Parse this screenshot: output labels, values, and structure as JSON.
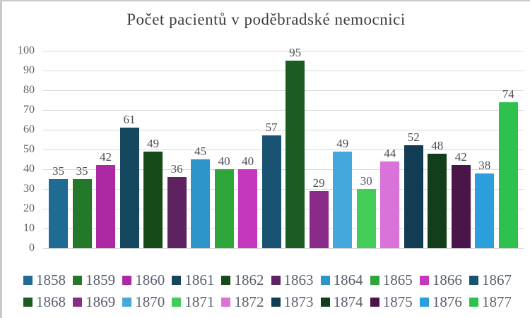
{
  "title": "Počet pacientů v poděbradské nemocnici",
  "chart_data": {
    "type": "bar",
    "title": "Počet pacientů v poděbradské nemocnici",
    "categories": [
      "1858",
      "1859",
      "1860",
      "1861",
      "1862",
      "1863",
      "1864",
      "1865",
      "1866",
      "1867",
      "1868",
      "1869",
      "1870",
      "1871",
      "1872",
      "1873",
      "1874",
      "1875",
      "1876",
      "1877"
    ],
    "values": [
      35,
      35,
      42,
      61,
      49,
      36,
      45,
      40,
      40,
      57,
      95,
      29,
      49,
      30,
      44,
      52,
      48,
      42,
      38,
      74
    ],
    "colors": [
      "#1F6B94",
      "#24782A",
      "#AC29A3",
      "#15485F",
      "#174A19",
      "#5F2260",
      "#2E95CB",
      "#2FA639",
      "#C438BE",
      "#1A5372",
      "#1A5C22",
      "#8A2B8A",
      "#44A8DC",
      "#43CC58",
      "#D972D9",
      "#123B54",
      "#133E1B",
      "#4A1649",
      "#2B9EDC",
      "#2FC14E"
    ],
    "xlabel": "",
    "ylabel": "",
    "ylim": [
      0,
      100
    ],
    "ytick_step": 10,
    "yticks": [
      0,
      10,
      20,
      30,
      40,
      50,
      60,
      70,
      80,
      90,
      100
    ],
    "grid": true,
    "data_labels": true,
    "legend_position": "bottom",
    "legend_rows": 2
  },
  "style_colors": {
    "gridline": "#d9d9d9",
    "title_text": "#3d4043",
    "axis_text": "#5a5f66",
    "value_text": "#4b5056",
    "legend_text": "#59616e",
    "frame_border": "#c9c9c9",
    "background": "#ffffff"
  }
}
